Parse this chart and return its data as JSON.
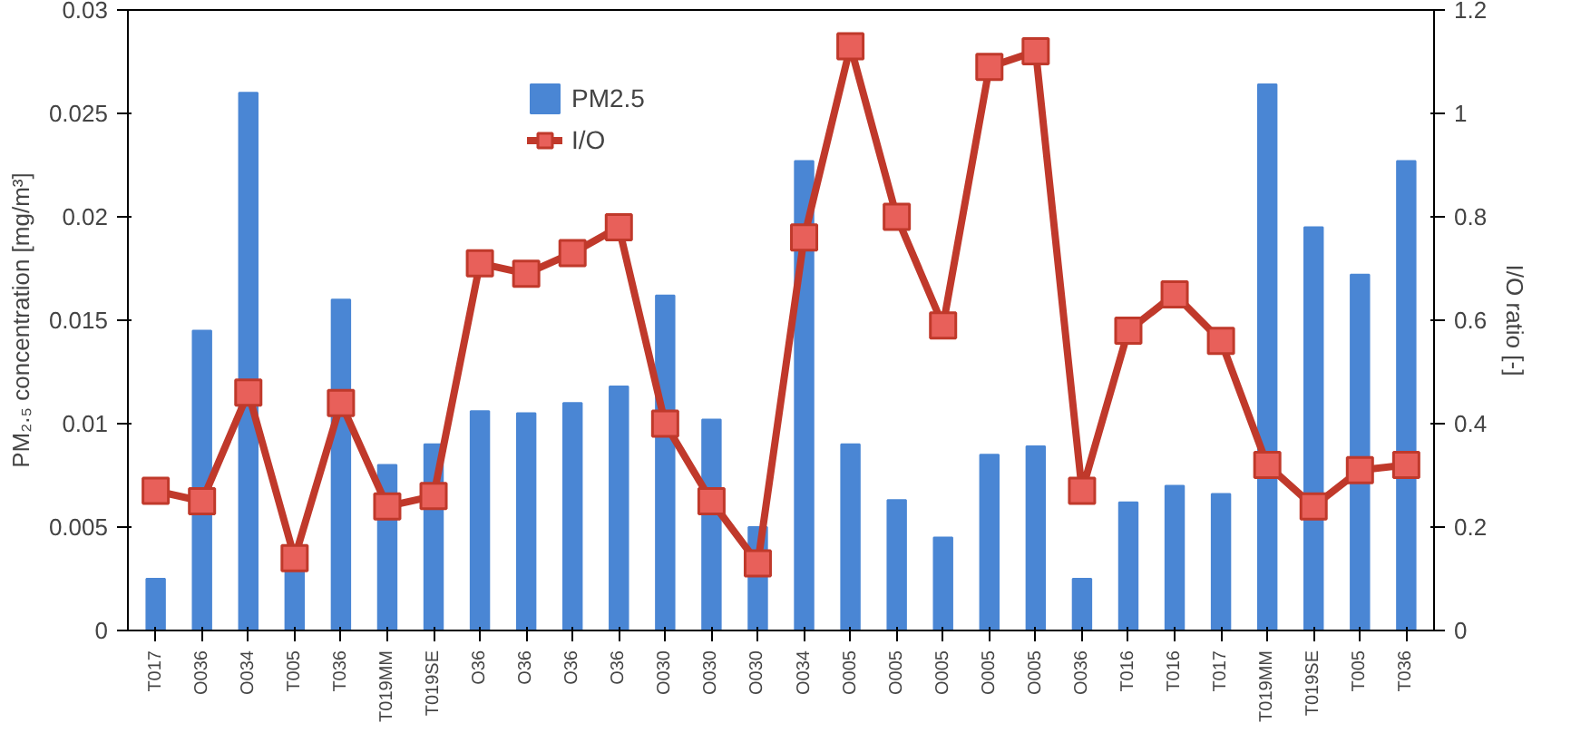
{
  "chart_data": {
    "type": "bar",
    "categories": [
      "T017",
      "O036",
      "O034",
      "T005",
      "T036",
      "T019MM",
      "T019SE",
      "O36",
      "O36",
      "O36",
      "O36",
      "O030",
      "O030",
      "O030",
      "O034",
      "O005",
      "O005",
      "O005",
      "O005",
      "O005",
      "O036",
      "T016",
      "T016",
      "T017",
      "T019MM",
      "T019SE",
      "T005",
      "T036"
    ],
    "series": [
      {
        "name": "PM2.5",
        "color": "#4a86d4",
        "values": [
          0.0025,
          0.0145,
          0.026,
          0.003,
          0.016,
          0.008,
          0.009,
          0.0106,
          0.0105,
          0.011,
          0.0118,
          0.0162,
          0.0102,
          0.005,
          0.0227,
          0.009,
          0.0063,
          0.0045,
          0.0085,
          0.0089,
          0.0025,
          0.0062,
          0.007,
          0.0066,
          0.0264,
          0.0195,
          0.0172,
          0.0227
        ]
      },
      {
        "name": "I/O",
        "type": "line",
        "axis": "y2",
        "color": "#c0392b",
        "marker": "square",
        "values": [
          0.27,
          0.25,
          0.46,
          0.14,
          0.44,
          0.24,
          0.26,
          0.71,
          0.69,
          0.73,
          0.78,
          0.4,
          0.25,
          0.13,
          0.76,
          1.13,
          0.8,
          0.59,
          1.09,
          1.12,
          0.27,
          0.58,
          0.65,
          0.56,
          0.32,
          0.24,
          0.31,
          0.32
        ]
      }
    ],
    "ylabel": "PM₂.₅ concentration [mg/m³]",
    "y2label": "I/O ratio [-]",
    "ylim": [
      0,
      0.03
    ],
    "yticks": [
      0,
      0.005,
      0.01,
      0.015,
      0.02,
      0.025,
      0.03
    ],
    "y2lim": [
      0,
      1.2
    ],
    "y2ticks": [
      0,
      0.2,
      0.4,
      0.6,
      0.8,
      1,
      1.2
    ],
    "grid": false,
    "legend": "top left"
  }
}
